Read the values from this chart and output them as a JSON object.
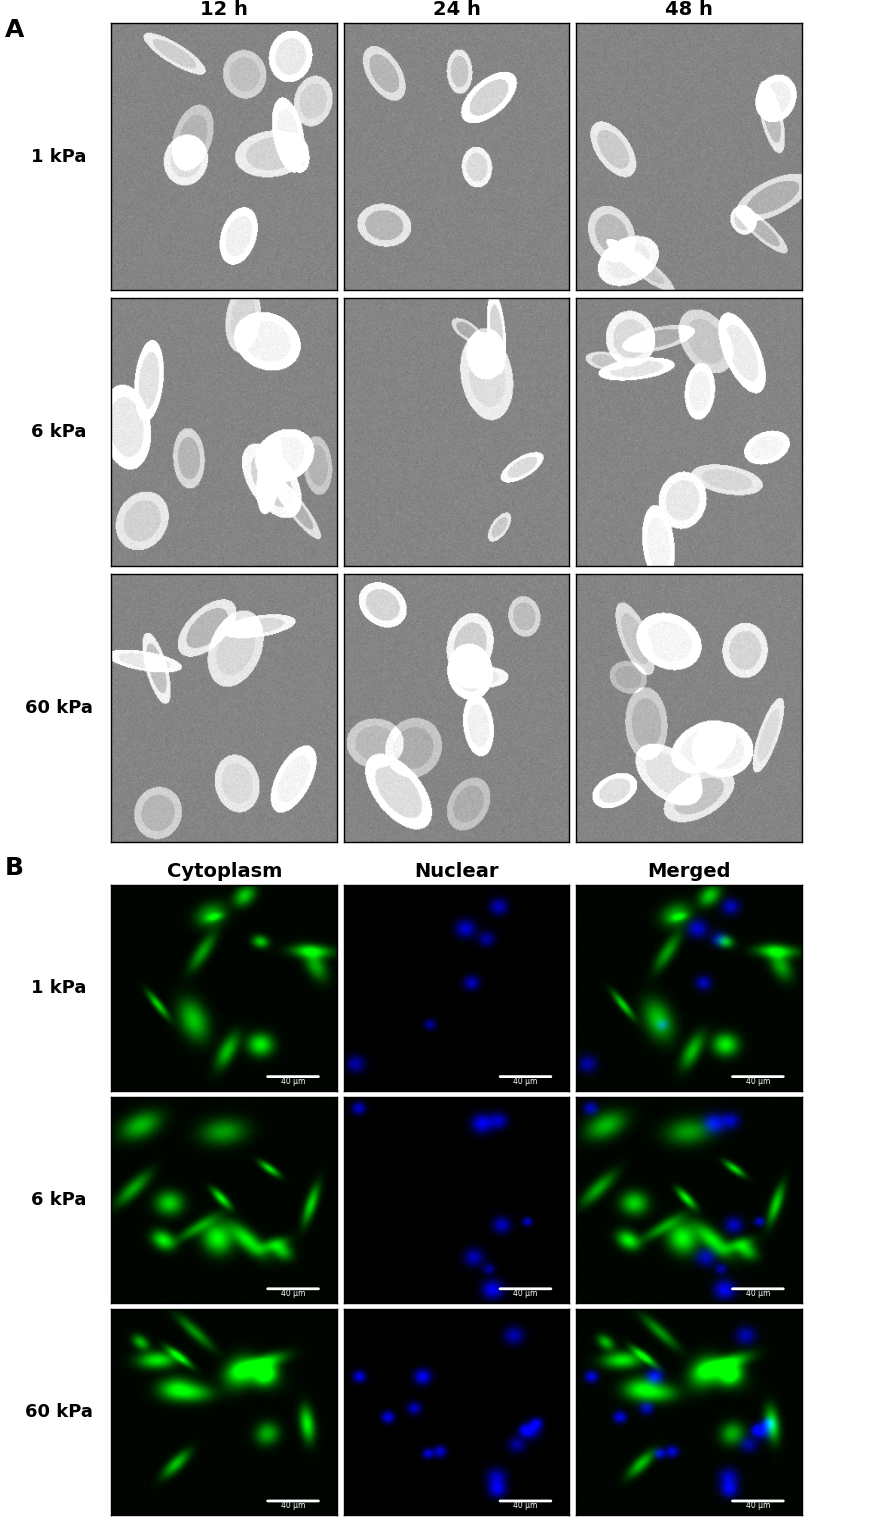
{
  "panel_A_label": "A",
  "panel_B_label": "B",
  "col_headers_A": [
    "12 h",
    "24 h",
    "48 h"
  ],
  "col_headers_B": [
    "Cytoplasm",
    "Nuclear",
    "Merged"
  ],
  "row_labels_A": [
    "1 kPa",
    "6 kPa",
    "60 kPa"
  ],
  "row_labels_B": [
    "1 kPa",
    "6 kPa",
    "60 kPa"
  ],
  "header_fontsize": 14,
  "label_fontsize": 13,
  "panel_label_fontsize": 18,
  "bg_color": "#ffffff",
  "scalebar_text": "40 μm",
  "figure_width": 8.91,
  "figure_height": 15.23
}
